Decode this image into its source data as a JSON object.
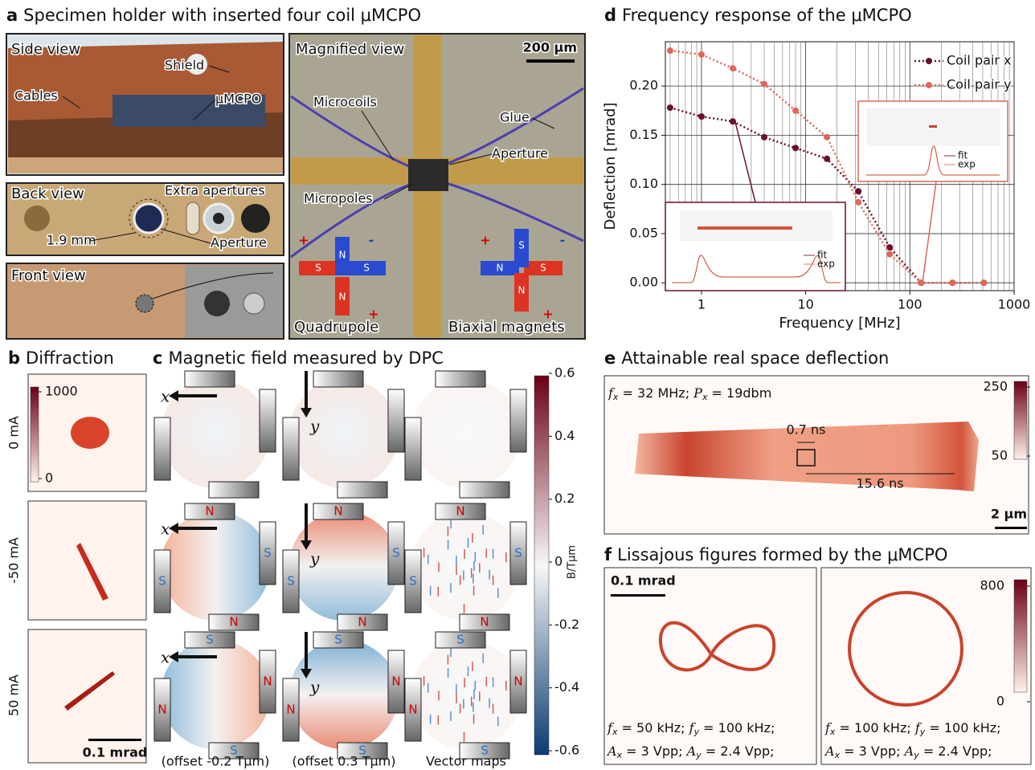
{
  "panel_a": {
    "label": "a",
    "title": "Specimen holder with inserted four coil μMCPO",
    "side_view": {
      "title": "Side view",
      "shield": "Shield",
      "cables": "Cables",
      "device": "μMCPO"
    },
    "back_view": {
      "title": "Back view",
      "extra": "Extra apertures",
      "size": "1.9 mm",
      "aperture": "Aperture"
    },
    "front_view": {
      "title": "Front view"
    },
    "magnified_view": {
      "title": "Magnified view",
      "scale": "200 μm",
      "microcoils": "Microcoils",
      "glue": "Glue",
      "aperture": "Aperture",
      "micropoles": "Micropoles",
      "quadrupole": "Quadrupole",
      "biaxial": "Biaxial magnets"
    },
    "poles": {
      "north": "N",
      "south": "S",
      "plus": "+",
      "minus": "-"
    }
  },
  "panel_b": {
    "label": "b",
    "title": "Diffraction",
    "rows": [
      "0 mA",
      "-50 mA",
      "50 mA"
    ],
    "colorbar_ticks": [
      1000,
      0
    ],
    "scale": "0.1 mrad"
  },
  "panel_c": {
    "label": "c",
    "title": "Magnetic field measured by DPC",
    "axis_x": "x",
    "axis_y": "y",
    "poles": {
      "north": "N",
      "south": "S"
    },
    "columns": [
      "(offset -0.2 Tμm)",
      "(offset 0.3 Tμm)",
      "Vector maps"
    ],
    "colorbar_ticks": [
      0.6,
      0.4,
      0.2,
      0,
      -0.2,
      -0.4,
      -0.6
    ],
    "colorbar_label": "B/Tμm"
  },
  "chart_data": {
    "type": "line",
    "label": "d",
    "title": "Frequency response of the μMCPO",
    "xlabel": "Frequency [MHz]",
    "ylabel": "Deflection [mrad]",
    "x": [
      0.5,
      1,
      2,
      4,
      8,
      16,
      32,
      64,
      128,
      256,
      512
    ],
    "series": [
      {
        "name": "Coil pair x",
        "color": "#6b0f2a",
        "values": [
          0.178,
          0.169,
          0.164,
          0.148,
          0.137,
          0.126,
          0.093,
          0.036,
          0,
          0,
          0
        ]
      },
      {
        "name": "Coil pair y",
        "color": "#e0675a",
        "values": [
          0.236,
          0.232,
          0.218,
          0.202,
          0.175,
          0.148,
          0.082,
          0.029,
          0,
          0,
          0
        ]
      }
    ],
    "xscale": "log",
    "xlim": [
      0.45,
      1000
    ],
    "xticks": [
      1,
      10,
      100,
      1000
    ],
    "ylim": [
      -0.008,
      0.245
    ],
    "yticks": [
      {
        "value": 0,
        "label": "0.00"
      },
      0.05,
      {
        "value": 0.1,
        "label": "0.10"
      },
      0.15,
      {
        "value": 0.2,
        "label": "0.20"
      }
    ],
    "grid": true,
    "legend": "upper right",
    "inset_legend": [
      "fit",
      "exp"
    ]
  },
  "panel_e": {
    "label": "e",
    "title": "Attainable real space deflection",
    "annotation": [
      {
        "var": "f",
        "sub": "x",
        "rest": " = 32 MHz; "
      },
      {
        "var": "P",
        "sub": "x",
        "rest": " = 19dbm"
      }
    ],
    "period": "0.7 ns",
    "span": "15.6 ns",
    "scale": "2 μm",
    "colorbar_ticks": [
      250,
      50
    ]
  },
  "panel_f": {
    "label": "f",
    "title": "Lissajous figures formed by the μMCPO",
    "scale": "0.1 mrad",
    "colorbar_ticks": [
      800,
      0
    ],
    "figures": [
      {
        "line1": [
          {
            "var": "f",
            "sub": "x",
            "rest": " = 50 kHz; "
          },
          {
            "var": "f",
            "sub": "y",
            "rest": " = 100 kHz;"
          }
        ],
        "line2": [
          {
            "var": "A",
            "sub": "x",
            "rest": " = 3 Vpp; "
          },
          {
            "var": "A",
            "sub": "y",
            "rest": " = 2.4 Vpp;"
          }
        ]
      },
      {
        "line1": [
          {
            "var": "f",
            "sub": "x",
            "rest": " = 100 kHz; "
          },
          {
            "var": "f",
            "sub": "y",
            "rest": " = 100 kHz;"
          }
        ],
        "line2": [
          {
            "var": "A",
            "sub": "x",
            "rest": " = 3 Vpp; "
          },
          {
            "var": "A",
            "sub": "y",
            "rest": " = 2.4 Vpp;"
          }
        ]
      }
    ]
  }
}
